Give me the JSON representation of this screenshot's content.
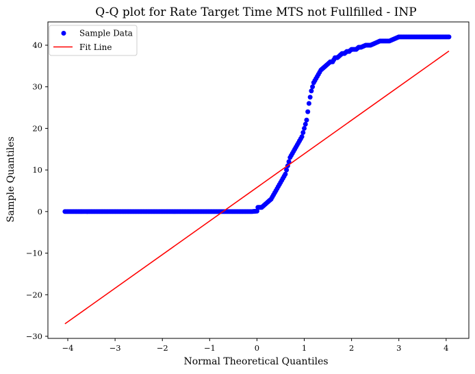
{
  "chart_data": {
    "type": "scatter",
    "title": "Q-Q plot for Rate Target Time MTS not Fullfilled - INP",
    "xlabel": "Normal Theoretical Quantiles",
    "ylabel": "Sample Quantiles",
    "xlim": [
      -4.42,
      4.48
    ],
    "ylim": [
      -30.5,
      45.6
    ],
    "xticks": [
      -4,
      -3,
      -2,
      -1,
      0,
      1,
      2,
      3,
      4
    ],
    "yticks": [
      -30,
      -20,
      -10,
      0,
      10,
      20,
      30,
      40
    ],
    "xtick_labels": [
      "−4",
      "−3",
      "−2",
      "−1",
      "0",
      "1",
      "2",
      "3",
      "4"
    ],
    "ytick_labels": [
      "−30",
      "−20",
      "−10",
      "0",
      "10",
      "20",
      "30",
      "40"
    ],
    "grid": false,
    "legend_position": "top-left",
    "colors": {
      "sample": "#0000ff",
      "fit": "#ff0000"
    },
    "series": [
      {
        "name": "Sample Data",
        "kind": "points",
        "x": [
          -4.06,
          -3.85,
          -3.75,
          -3.68,
          -3.6,
          -3.5,
          -3.4,
          -3.3,
          -3.2,
          -3.1,
          -3.0,
          -2.9,
          -2.8,
          -2.7,
          -2.6,
          -2.5,
          -2.4,
          -2.3,
          -2.2,
          -2.1,
          -2.0,
          -1.9,
          -1.8,
          -1.7,
          -1.6,
          -1.5,
          -1.4,
          -1.3,
          -1.2,
          -1.1,
          -1.0,
          -0.9,
          -0.8,
          -0.7,
          -0.6,
          -0.5,
          -0.4,
          -0.3,
          -0.2,
          -0.1,
          0.0,
          0.02,
          0.05,
          0.08,
          0.1,
          0.15,
          0.2,
          0.25,
          0.3,
          0.35,
          0.4,
          0.45,
          0.5,
          0.55,
          0.6,
          0.65,
          0.7,
          0.75,
          0.8,
          0.85,
          0.9,
          0.95,
          1.0,
          1.05,
          1.1,
          1.15,
          1.2,
          1.25,
          1.3,
          1.35,
          1.4,
          1.45,
          1.5,
          1.55,
          1.6,
          1.65,
          1.7,
          1.75,
          1.8,
          1.85,
          1.9,
          1.95,
          2.0,
          2.05,
          2.1,
          2.15,
          2.2,
          2.3,
          2.4,
          2.5,
          2.6,
          2.7,
          2.8,
          2.9,
          3.0,
          3.1,
          3.2,
          3.3,
          3.4,
          3.5,
          3.6,
          3.7,
          3.8,
          3.9,
          4.06
        ],
        "y": [
          0,
          0,
          0,
          0,
          0,
          0,
          0,
          0,
          0,
          0,
          0,
          0,
          0,
          0,
          0,
          0,
          0,
          0,
          0,
          0,
          0,
          0,
          0,
          0,
          0,
          0,
          0,
          0,
          0,
          0,
          0,
          0,
          0,
          0,
          0,
          0,
          0,
          0,
          0,
          0,
          0.1,
          1,
          1,
          1,
          1,
          1.5,
          2,
          2.5,
          3,
          4,
          5,
          6,
          7,
          8,
          9,
          11,
          13,
          14,
          15,
          16,
          17,
          18,
          20,
          22,
          26,
          29,
          31,
          32,
          33,
          34,
          34.5,
          35,
          35.5,
          36,
          36,
          37,
          37,
          37.5,
          38,
          38,
          38.5,
          38.5,
          39,
          39,
          39,
          39.5,
          39.5,
          40,
          40,
          40.5,
          41,
          41,
          41,
          41.5,
          42,
          42,
          42,
          42,
          42,
          42,
          42,
          42,
          42,
          42,
          42
        ]
      },
      {
        "name": "Fit Line",
        "kind": "line",
        "x": [
          -4.06,
          4.06
        ],
        "y": [
          -27.0,
          38.6
        ]
      }
    ]
  }
}
